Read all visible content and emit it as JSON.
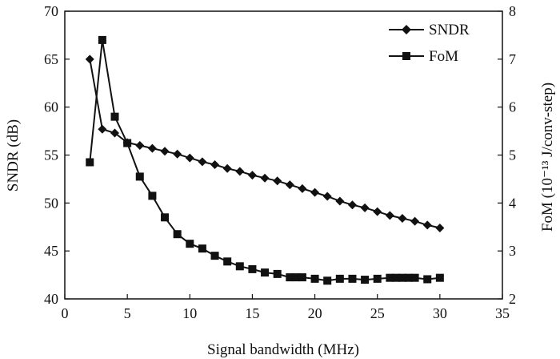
{
  "chart_data": {
    "type": "line",
    "xlabel": "Signal bandwidth (MHz)",
    "ylabel_left": "SNDR (dB)",
    "ylabel_right": "FoM (10⁻¹³ J/conv-step)",
    "xlim": [
      0,
      35
    ],
    "ylim_left": [
      40,
      70
    ],
    "ylim_right": [
      2,
      8
    ],
    "x_ticks": [
      "0",
      "5",
      "10",
      "15",
      "20",
      "25",
      "30",
      "35"
    ],
    "y_left_ticks": [
      "40",
      "45",
      "50",
      "55",
      "60",
      "65",
      "70"
    ],
    "y_right_ticks": [
      "2",
      "3",
      "4",
      "5",
      "6",
      "7",
      "8"
    ],
    "grid": false,
    "legend_position": "top-right",
    "series": [
      {
        "name": "SNDR",
        "axis": "left",
        "marker": "diamond",
        "color": "#111111",
        "points": [
          [
            2,
            65
          ],
          [
            3,
            57.7
          ],
          [
            4,
            57.3
          ],
          [
            5,
            56.3
          ],
          [
            6,
            56
          ],
          [
            7,
            55.7
          ],
          [
            8,
            55.4
          ],
          [
            9,
            55.1
          ],
          [
            10,
            54.7
          ],
          [
            11,
            54.3
          ],
          [
            12,
            54
          ],
          [
            13,
            53.6
          ],
          [
            14,
            53.3
          ],
          [
            15,
            52.9
          ],
          [
            16,
            52.6
          ],
          [
            17,
            52.3
          ],
          [
            18,
            51.9
          ],
          [
            19,
            51.5
          ],
          [
            20,
            51.1
          ],
          [
            21,
            50.7
          ],
          [
            22,
            50.2
          ],
          [
            23,
            49.8
          ],
          [
            24,
            49.5
          ],
          [
            25,
            49.1
          ],
          [
            26,
            48.7
          ],
          [
            27,
            48.4
          ],
          [
            28,
            48.1
          ],
          [
            29,
            47.7
          ],
          [
            30,
            47.4
          ]
        ]
      },
      {
        "name": "FoM",
        "axis": "right",
        "marker": "square",
        "color": "#111111",
        "points": [
          [
            2,
            4.85
          ],
          [
            3,
            7.4
          ],
          [
            4,
            5.8
          ],
          [
            5,
            5.25
          ],
          [
            6,
            4.55
          ],
          [
            7,
            4.15
          ],
          [
            8,
            3.7
          ],
          [
            9,
            3.35
          ],
          [
            10,
            3.15
          ],
          [
            11,
            3.05
          ],
          [
            12,
            2.9
          ],
          [
            13,
            2.78
          ],
          [
            14,
            2.68
          ],
          [
            15,
            2.62
          ],
          [
            16,
            2.55
          ],
          [
            17,
            2.52
          ],
          [
            18,
            2.45
          ],
          [
            18.5,
            2.45
          ],
          [
            19,
            2.45
          ],
          [
            20,
            2.42
          ],
          [
            21,
            2.38
          ],
          [
            22,
            2.42
          ],
          [
            23,
            2.42
          ],
          [
            24,
            2.4
          ],
          [
            25,
            2.42
          ],
          [
            26,
            2.44
          ],
          [
            26.5,
            2.44
          ],
          [
            27,
            2.44
          ],
          [
            27.5,
            2.44
          ],
          [
            28,
            2.44
          ],
          [
            29,
            2.41
          ],
          [
            30,
            2.44
          ]
        ]
      }
    ]
  }
}
